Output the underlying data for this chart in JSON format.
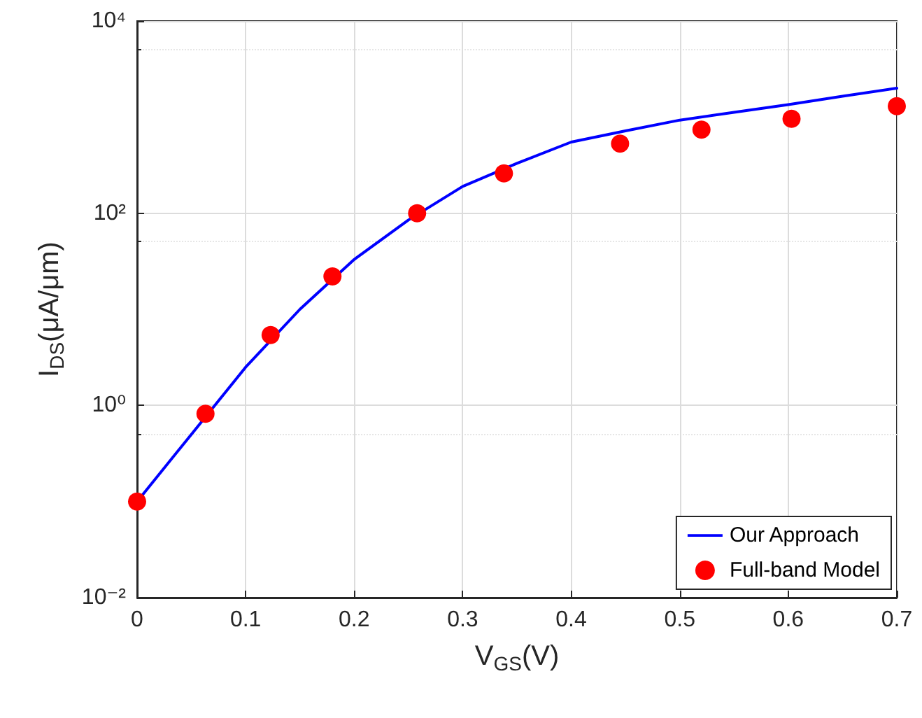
{
  "chart_data": {
    "type": "line",
    "xlabel": "V$_{GS}$(V)",
    "ylabel": "I$_{DS}$(μA/μm)",
    "log": "y",
    "grid": true,
    "legend": "bottom right",
    "xlim": [
      0,
      0.7
    ],
    "xticks": [
      0,
      0.1,
      0.2,
      0.3,
      0.4,
      0.5,
      0.6,
      0.7
    ],
    "ylim": [
      0.01,
      10000
    ],
    "yticks": [
      {
        "value": 0.01,
        "label": "10⁻²"
      },
      {
        "value": 1,
        "label": "10⁰"
      },
      {
        "value": 100,
        "label": "10²"
      },
      {
        "value": 10000,
        "label": "10⁴"
      }
    ],
    "series": [
      {
        "name": "Our Approach",
        "color": "#0000ff",
        "marker": "none",
        "line_style": "solid",
        "x": [
          0,
          0.05,
          0.1,
          0.15,
          0.2,
          0.25,
          0.3,
          0.35,
          0.4,
          0.45,
          0.5,
          0.55,
          0.6,
          0.65,
          0.7
        ],
        "values": [
          0.1,
          0.5,
          2.5,
          10,
          33,
          85,
          190,
          330,
          550,
          720,
          930,
          1120,
          1350,
          1650,
          2000
        ]
      },
      {
        "name": "Full-band Model",
        "type": "scatter",
        "color": "#ff0000",
        "marker": "circle",
        "x": [
          0,
          0.063,
          0.123,
          0.18,
          0.258,
          0.338,
          0.445,
          0.52,
          0.603,
          0.7
        ],
        "values": [
          0.1,
          0.82,
          5.4,
          22,
          100,
          260,
          530,
          740,
          960,
          1300
        ]
      }
    ]
  }
}
